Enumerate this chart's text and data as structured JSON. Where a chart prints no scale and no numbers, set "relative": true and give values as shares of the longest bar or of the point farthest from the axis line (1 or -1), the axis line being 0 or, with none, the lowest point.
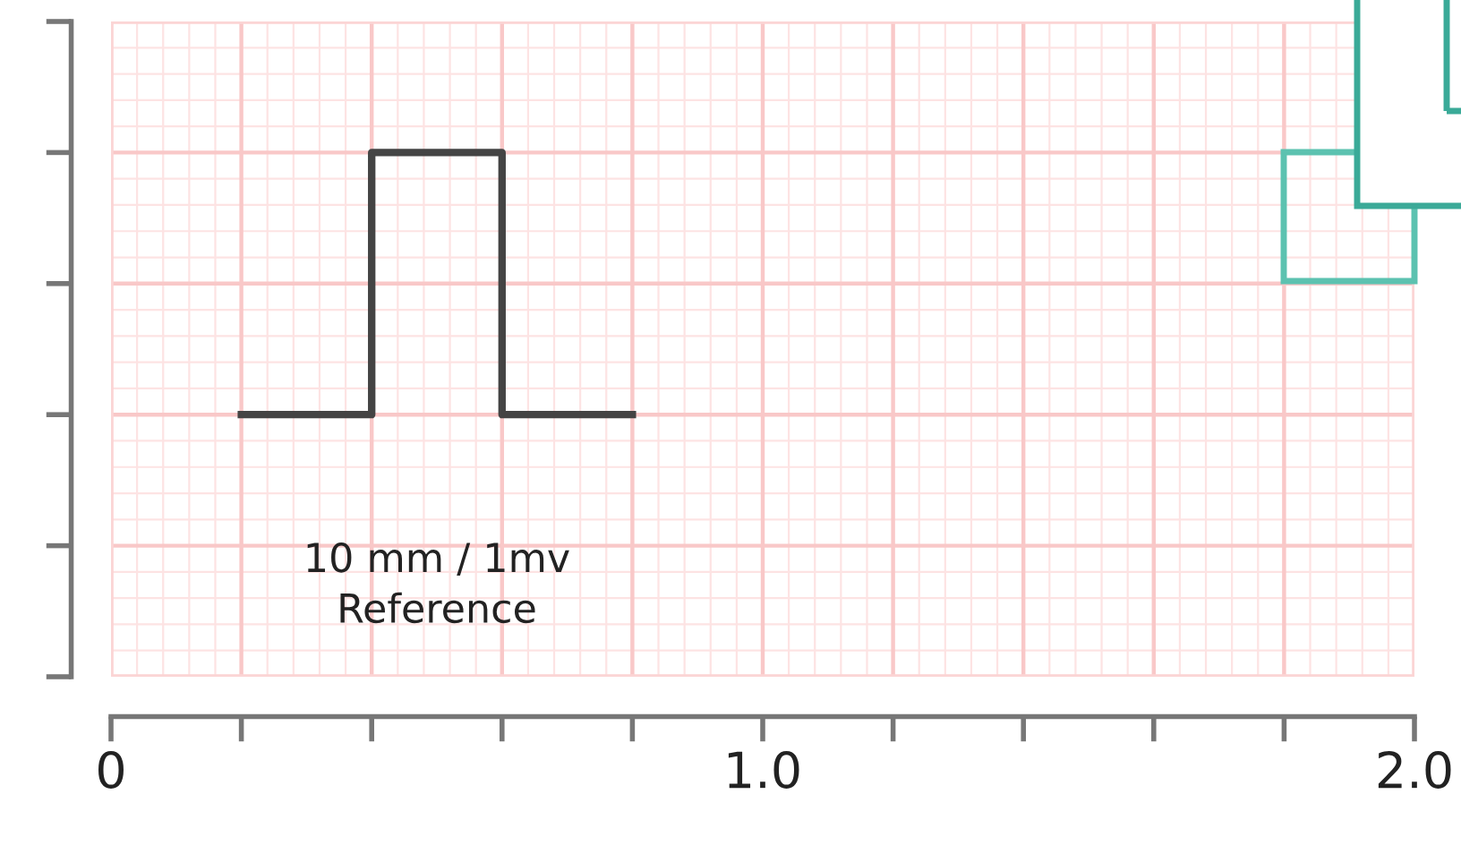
{
  "chart_data": {
    "type": "line",
    "relative": true,
    "x": [
      0.2,
      0.4,
      0.4,
      0.6,
      0.6,
      0.8
    ],
    "series": [
      {
        "color": "#444444",
        "values": [
          0,
          0,
          1,
          1,
          0,
          0
        ]
      }
    ],
    "xlim": [
      0,
      2.0
    ],
    "xticks": [
      0,
      {
        "value": 0.2,
        "label": null
      },
      {
        "value": 0.4,
        "label": null
      },
      {
        "value": 0.6,
        "label": null
      },
      {
        "value": 0.8,
        "label": null
      },
      {
        "value": 1.0,
        "label": "1.0"
      },
      {
        "value": 1.2,
        "label": null
      },
      {
        "value": 1.4,
        "label": null
      },
      {
        "value": 1.6,
        "label": null
      },
      {
        "value": 1.8,
        "label": null
      },
      {
        "value": 2.0,
        "label": "2.0"
      }
    ],
    "grid": true,
    "marker": "none",
    "line_style": "solid",
    "tick_labels": "x",
    "annotations": [
      "10 mm / 1mv\nReference"
    ]
  }
}
